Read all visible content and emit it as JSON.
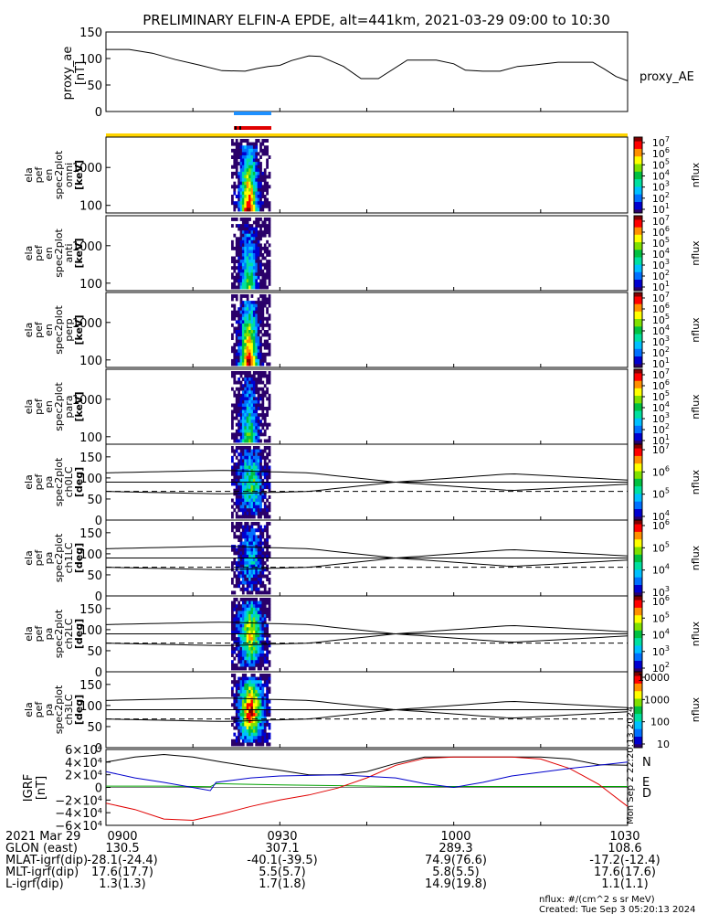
{
  "title": "PRELIMINARY ELFIN-A EPDE, alt=441km, 2021-03-29 09:00 to 10:30",
  "colors": {
    "ae_line": "#000000",
    "bar_blue": "#1e90ff",
    "bar_red": "#e00000",
    "bar_yellow": "#ffd400",
    "grf_N": "#000000",
    "grf_E": "#00a000",
    "grf_D": "#e00000",
    "grf_blue": "#0000cc"
  },
  "chart_data": [
    {
      "type": "line",
      "panel": "proxy_ae",
      "ylabel": [
        "proxy_ae",
        "[nT]"
      ],
      "legend": "proxy_AE",
      "ylim": [
        0,
        150
      ],
      "yticks": [
        "150",
        "100",
        "50",
        "0"
      ],
      "xlim_minutes": [
        0,
        90
      ],
      "x": [
        0,
        4,
        8,
        12,
        16,
        20,
        24,
        26,
        28,
        30,
        32,
        35,
        37,
        41,
        44,
        47,
        52,
        54,
        57,
        60,
        62,
        65,
        68,
        71,
        74,
        78,
        81,
        84,
        86,
        88,
        90
      ],
      "y": [
        117,
        117,
        110,
        98,
        88,
        77,
        76,
        81,
        85,
        87,
        96,
        105,
        104,
        85,
        62,
        62,
        97,
        97,
        97,
        90,
        78,
        76,
        76,
        85,
        88,
        93,
        93,
        93,
        80,
        66,
        58
      ]
    },
    {
      "type": "heatmap",
      "panel": "omni",
      "ylabel": [
        "ela",
        "pef",
        "en",
        "spec2plot",
        "omni",
        "[keV]"
      ],
      "yscale": "log",
      "yticks": [
        "1000",
        "100"
      ],
      "colorbar": {
        "label": "nflux",
        "ticks": [
          "10^7",
          "10^6",
          "10^5",
          "10^4",
          "10^3",
          "10^2",
          "10^1"
        ]
      }
    },
    {
      "type": "heatmap",
      "panel": "anti",
      "ylabel": [
        "ela",
        "pef",
        "en",
        "spec2plot",
        "anti",
        "[keV]"
      ],
      "yscale": "log",
      "yticks": [
        "1000",
        "100"
      ],
      "colorbar": {
        "label": "nflux",
        "ticks": [
          "10^7",
          "10^6",
          "10^5",
          "10^4",
          "10^3",
          "10^2",
          "10^1"
        ]
      }
    },
    {
      "type": "heatmap",
      "panel": "perp",
      "ylabel": [
        "ela",
        "pef",
        "en",
        "spec2plot",
        "perp",
        "[keV]"
      ],
      "yscale": "log",
      "yticks": [
        "1000",
        "100"
      ],
      "colorbar": {
        "label": "nflux",
        "ticks": [
          "10^7",
          "10^6",
          "10^5",
          "10^4",
          "10^3",
          "10^2",
          "10^1"
        ]
      }
    },
    {
      "type": "heatmap",
      "panel": "para",
      "ylabel": [
        "ela",
        "pef",
        "en",
        "spec2plot",
        "para",
        "[keV]"
      ],
      "yscale": "log",
      "yticks": [
        "1000",
        "100"
      ],
      "colorbar": {
        "label": "nflux",
        "ticks": [
          "10^7",
          "10^6",
          "10^5",
          "10^4",
          "10^3",
          "10^2",
          "10^1"
        ]
      }
    },
    {
      "type": "heatmap",
      "panel": "ch0LC",
      "ylabel": [
        "ela",
        "pef",
        "pa",
        "spec2plot",
        "ch0LC",
        "[deg]"
      ],
      "ylim": [
        0,
        180
      ],
      "yticks": [
        "150",
        "100",
        "50",
        "0"
      ],
      "colorbar": {
        "label": "nflux",
        "ticks": [
          "10^7",
          "10^6",
          "10^5",
          "10^4"
        ]
      }
    },
    {
      "type": "heatmap",
      "panel": "ch1LC",
      "ylabel": [
        "ela",
        "pef",
        "pa",
        "spec2plot",
        "ch1LC",
        "[deg]"
      ],
      "ylim": [
        0,
        180
      ],
      "yticks": [
        "150",
        "100",
        "50",
        "0"
      ],
      "colorbar": {
        "label": "nflux",
        "ticks": [
          "10^6",
          "10^5",
          "10^4",
          "10^3"
        ]
      }
    },
    {
      "type": "heatmap",
      "panel": "ch2LC",
      "ylabel": [
        "ela",
        "pef",
        "pa",
        "spec2plot",
        "ch2LC",
        "[deg]"
      ],
      "ylim": [
        0,
        180
      ],
      "yticks": [
        "150",
        "100",
        "50",
        "0"
      ],
      "colorbar": {
        "label": "nflux",
        "ticks": [
          "10^6",
          "10^5",
          "10^4",
          "10^3",
          "10^2"
        ]
      }
    },
    {
      "type": "heatmap",
      "panel": "ch3LC",
      "ylabel": [
        "ela",
        "pef",
        "pa",
        "spec2plot",
        "ch3LC",
        "[deg]"
      ],
      "ylim": [
        0,
        180
      ],
      "yticks": [
        "150",
        "100",
        "50",
        "0"
      ],
      "colorbar": {
        "label": "nflux",
        "ticks": [
          "10000",
          "1000",
          "100",
          "10"
        ]
      }
    },
    {
      "type": "line",
      "panel": "IGRF",
      "ylabel": [
        "IGRF",
        "[nT]"
      ],
      "ylim": [
        -60000,
        60000
      ],
      "yticks": [
        "6×10⁴",
        "4×10⁴",
        "2×10⁴",
        "0",
        "−2×10⁴",
        "−4×10⁴",
        "−6×10⁴"
      ],
      "series": [
        {
          "name": "N",
          "x": [
            0,
            5,
            10,
            15,
            20,
            25,
            30,
            35,
            40,
            45,
            50,
            55,
            60,
            65,
            70,
            75,
            80,
            85,
            90
          ],
          "y": [
            40000,
            48000,
            52000,
            48000,
            40000,
            33000,
            27000,
            20000,
            20000,
            25000,
            38000,
            48000,
            48000,
            48000,
            48000,
            48000,
            45000,
            36000,
            35000
          ]
        },
        {
          "name": "E",
          "x": [
            0,
            10,
            18,
            19,
            30,
            50,
            70,
            90
          ],
          "y": [
            2000,
            2000,
            1000,
            6000,
            4000,
            1500,
            1500,
            1500
          ]
        },
        {
          "name": "D",
          "x": [
            0,
            5,
            10,
            15,
            20,
            25,
            30,
            35,
            40,
            45,
            50,
            55,
            60,
            65,
            70,
            75,
            80,
            85,
            90
          ],
          "y": [
            -25000,
            -35000,
            -50000,
            -52000,
            -42000,
            -30000,
            -20000,
            -12000,
            -1000,
            15000,
            35000,
            46000,
            48000,
            48000,
            48000,
            45000,
            30000,
            5000,
            -30000
          ]
        },
        {
          "name": "",
          "x": [
            0,
            5,
            10,
            18,
            19,
            25,
            30,
            40,
            50,
            55,
            60,
            65,
            70,
            80,
            90
          ],
          "y": [
            25000,
            15000,
            8000,
            -5000,
            8000,
            15000,
            18000,
            20000,
            15000,
            6000,
            0,
            8000,
            18000,
            30000,
            40000
          ]
        }
      ]
    }
  ],
  "igrf_legend": [
    "N",
    "E",
    "D"
  ],
  "footer": {
    "rows": [
      {
        "label": "2021 Mar 29",
        "values": [
          "0900",
          "0930",
          "1000",
          "1030"
        ]
      },
      {
        "label": "GLON (east)",
        "values": [
          "130.5",
          "307.1",
          "289.3",
          "108.6"
        ]
      },
      {
        "label": "MLAT-igrf(dip)",
        "values": [
          "-28.1(-24.4)",
          "-40.1(-39.5)",
          "74.9(76.6)",
          "-17.2(-12.4)"
        ]
      },
      {
        "label": "MLT-igrf(dip)",
        "values": [
          "17.6(17.7)",
          "5.5(5.7)",
          "5.8(5.5)",
          "17.6(17.6)"
        ]
      },
      {
        "label": "L-igrf(dip)",
        "values": [
          "1.3(1.3)",
          "1.7(1.8)",
          "14.9(19.8)",
          "1.1(1.1)"
        ]
      }
    ],
    "units": "nflux: #/(cm^2 s sr MeV)",
    "created": "Created: Tue Sep  3 05:20:13 2024",
    "side_stamp": "Mon Sep  2 22:20:13 2024"
  }
}
